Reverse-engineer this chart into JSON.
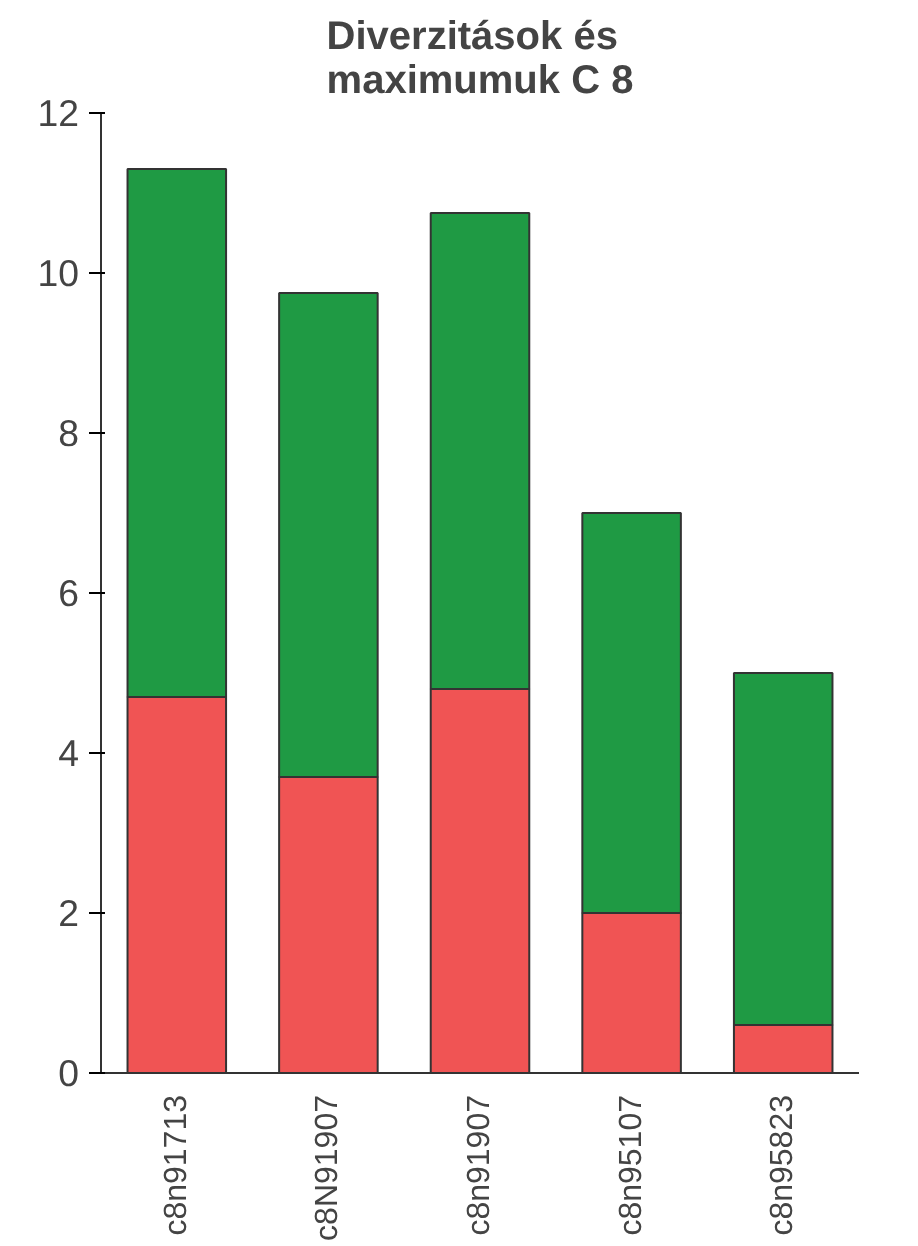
{
  "chart_data": {
    "type": "bar",
    "title": "Diverzitások és maximumuk C 8",
    "stacked": true,
    "categories": [
      "c8n91713",
      "c8N91907",
      "c8n91907",
      "c8n95107",
      "c8n95823"
    ],
    "series": [
      {
        "color": "#f05454",
        "values": [
          4.7,
          3.7,
          4.8,
          2.0,
          0.6
        ]
      },
      {
        "color": "#1f9a44",
        "values": [
          6.6,
          6.05,
          5.95,
          5.0,
          4.4
        ]
      }
    ],
    "ylim": [
      0,
      12
    ],
    "yticks": [
      0,
      2,
      4,
      6,
      8,
      10,
      12
    ],
    "grid": false
  }
}
